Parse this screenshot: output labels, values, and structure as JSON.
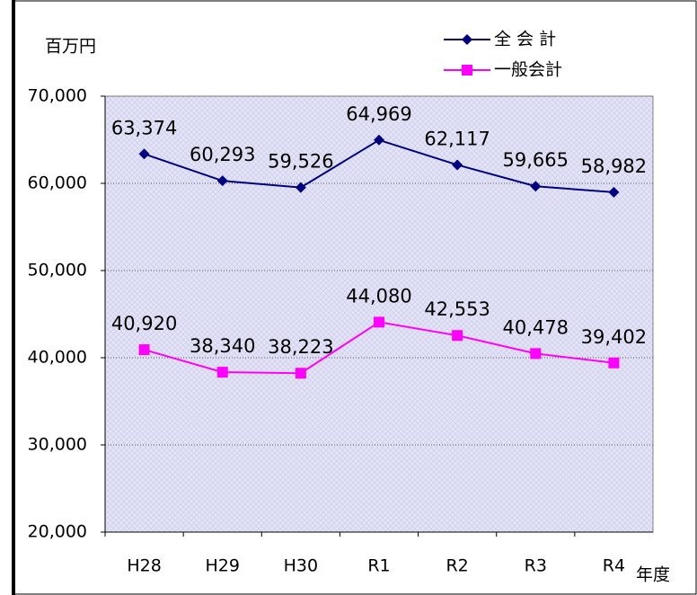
{
  "chart_data": {
    "type": "line",
    "y_unit_label": "百万円",
    "x_label": "年度",
    "categories": [
      "H28",
      "H29",
      "H30",
      "R1",
      "R2",
      "R3",
      "R4"
    ],
    "series": [
      {
        "name": "全 会 計",
        "color": "#000080",
        "marker": "diamond",
        "values": [
          63374,
          60293,
          59526,
          64969,
          62117,
          59665,
          58982
        ],
        "value_labels": [
          "63,374",
          "60,293",
          "59,526",
          "64,969",
          "62,117",
          "59,665",
          "58,982"
        ]
      },
      {
        "name": "一般会計",
        "color": "#ff00ff",
        "marker": "square",
        "values": [
          40920,
          38340,
          38223,
          44080,
          42553,
          40478,
          39402
        ],
        "value_labels": [
          "40,920",
          "38,340",
          "38,223",
          "44,080",
          "42,553",
          "40,478",
          "39,402"
        ]
      }
    ],
    "ylim": [
      20000,
      70000
    ],
    "yticks": [
      {
        "value": 20000,
        "label": "20,000"
      },
      {
        "value": 30000,
        "label": "30,000"
      },
      {
        "value": 40000,
        "label": "40,000"
      },
      {
        "value": 50000,
        "label": "50,000"
      },
      {
        "value": 60000,
        "label": "60,000"
      },
      {
        "value": 70000,
        "label": "70,000"
      }
    ],
    "grid": true,
    "legend": "top-right"
  }
}
